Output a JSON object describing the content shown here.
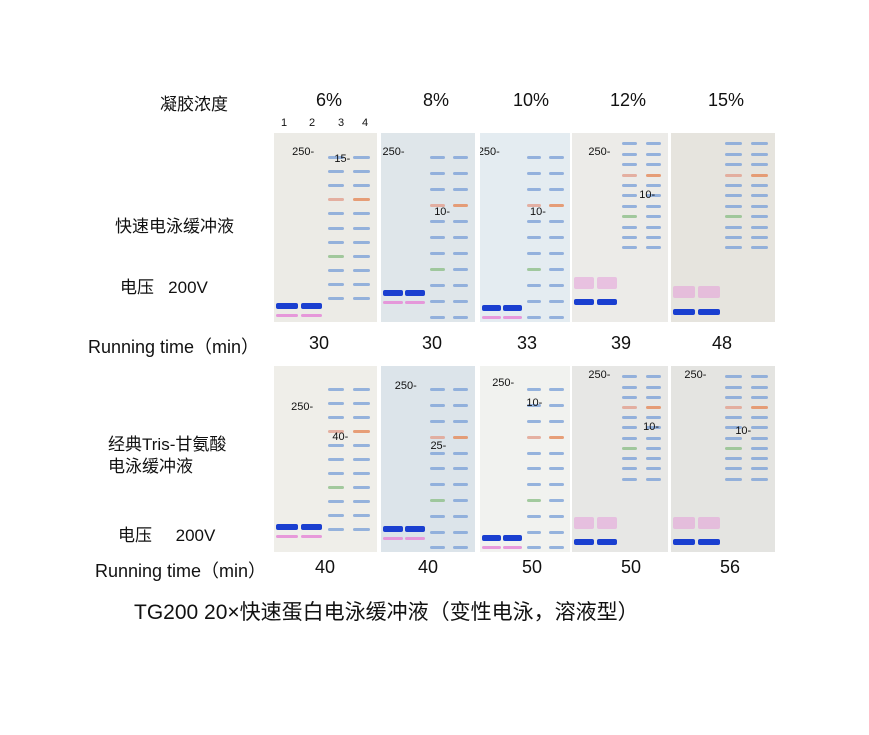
{
  "header_label": "凝胶浓度",
  "concentrations": [
    "6%",
    "8%",
    "10%",
    "12%",
    "15%"
  ],
  "lane_numbers": [
    "1",
    "2",
    "3",
    "4"
  ],
  "rows": [
    {
      "buffer": "快速电泳缓冲液",
      "voltage_label": "电压",
      "voltage": "200V",
      "running_time_label": "Running time（min）",
      "times": [
        "30",
        "30",
        "33",
        "39",
        "48"
      ],
      "gels": [
        {
          "markers": [
            "250-",
            "15-"
          ],
          "bg": "#ecebe6"
        },
        {
          "markers": [
            "250-",
            "10-"
          ],
          "bg": "#dfe6ea"
        },
        {
          "markers": [
            "250-",
            "10-"
          ],
          "bg": "#e4ecf1"
        },
        {
          "markers": [
            "250-",
            "10-"
          ],
          "bg": "#ecebe8"
        },
        {
          "markers": [],
          "bg": "#e6e4de"
        }
      ]
    },
    {
      "buffer": "经典Tris-甘氨酸",
      "buffer_line2": "电泳缓冲液",
      "voltage_label": "电压",
      "voltage": "200V",
      "running_time_label": "Running time（min）",
      "times": [
        "40",
        "40",
        "50",
        "50",
        "56"
      ],
      "gels": [
        {
          "markers": [
            "250-",
            "40-"
          ],
          "bg": "#efeee9"
        },
        {
          "markers": [
            "250-",
            "25-"
          ],
          "bg": "#dce4ea"
        },
        {
          "markers": [
            "250-",
            "10-"
          ],
          "bg": "#f1f2ef"
        },
        {
          "markers": [
            "250-",
            "10-"
          ],
          "bg": "#e7e7e5"
        },
        {
          "markers": [
            "250-",
            "10-"
          ],
          "bg": "#e4e4e1"
        }
      ]
    }
  ],
  "caption": "TG200  20×快速蛋白电泳缓冲液（变性电泳，溶液型）"
}
